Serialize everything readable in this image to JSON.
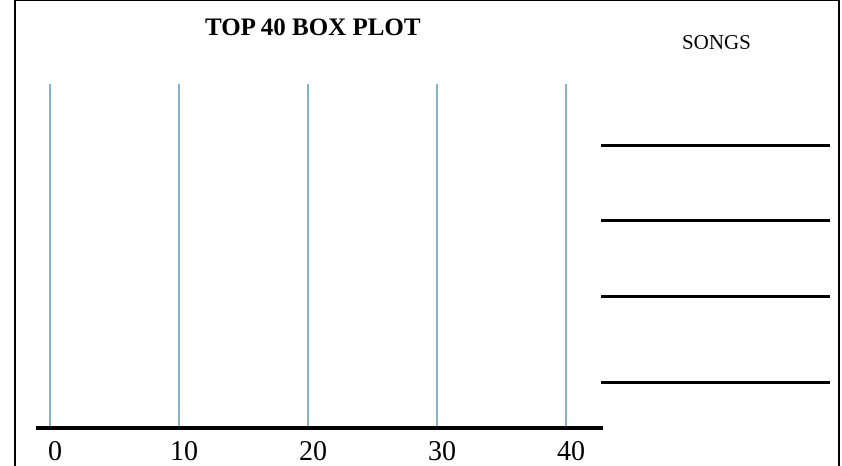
{
  "title": "TOP 40 BOX PLOT",
  "songs_label": "SONGS",
  "chart_data": {
    "type": "box",
    "title": "TOP 40 BOX PLOT",
    "xlabel": "",
    "ylabel": "",
    "xlim": [
      0,
      40
    ],
    "x_ticks": [
      0,
      10,
      20,
      30,
      40
    ],
    "x_tick_labels": [
      "0",
      "10",
      "20",
      "30",
      "40"
    ],
    "grid": true,
    "series": []
  },
  "songs": {
    "blank_lines": 4,
    "entries": [
      "",
      "",
      "",
      ""
    ]
  },
  "colors": {
    "gridline": "#5b9bb5",
    "axis": "#000000"
  }
}
